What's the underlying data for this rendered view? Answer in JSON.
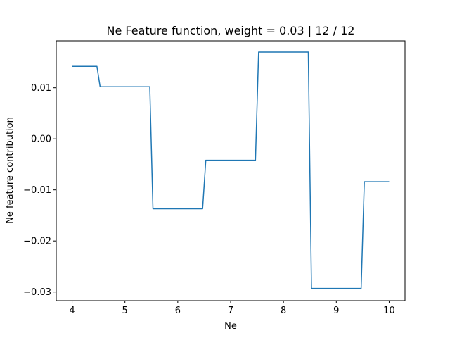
{
  "chart_data": {
    "type": "line",
    "title": "Ne Feature function, weight = 0.03 | 12 / 12",
    "xlabel": "Ne",
    "ylabel": "Ne feature contribution",
    "xlim": [
      3.7,
      10.3
    ],
    "ylim": [
      -0.0317,
      0.0192
    ],
    "xticks": [
      4,
      5,
      6,
      7,
      8,
      9,
      10
    ],
    "yticks": [
      -0.03,
      -0.02,
      -0.01,
      0.0,
      0.01
    ],
    "ytick_labels": [
      "−0.03",
      "−0.02",
      "−0.01",
      "0.00",
      "0.01"
    ],
    "grid": false,
    "color": "#1f77b4",
    "series": [
      {
        "x": [
          4.0,
          4.47,
          4.53,
          5.47,
          5.53,
          6.47,
          6.53,
          7.47,
          7.53,
          8.47,
          8.53,
          9.47,
          9.53,
          10.0
        ],
        "y": [
          0.0142,
          0.0142,
          0.0102,
          0.0102,
          -0.0137,
          -0.0137,
          -0.0042,
          -0.0042,
          0.017,
          0.017,
          -0.0293,
          -0.0293,
          -0.0084,
          -0.0084
        ]
      }
    ]
  }
}
